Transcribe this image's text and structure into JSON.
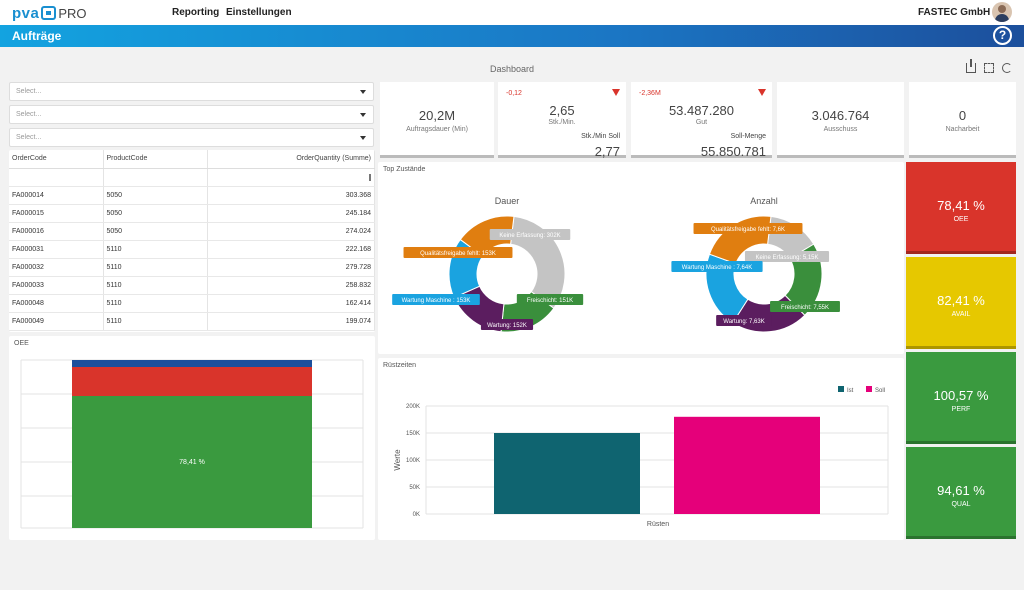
{
  "header": {
    "logo_text": "pva",
    "logo_suffix": "PRO",
    "nav": [
      "Reporting",
      "Einstellungen"
    ],
    "company": "FASTEC GmbH"
  },
  "titlebar": {
    "title": "Aufträge",
    "help": "?"
  },
  "dashboard": {
    "title": "Dashboard"
  },
  "filters": [
    "Select...",
    "Select...",
    "Select..."
  ],
  "table": {
    "columns": [
      "OrderCode",
      "ProductCode",
      "OrderQuantity (Summe)"
    ],
    "rows": [
      [
        "FA000014",
        "5050",
        "303.368"
      ],
      [
        "FA000015",
        "5050",
        "245.184"
      ],
      [
        "FA000016",
        "5050",
        "274.024"
      ],
      [
        "FA000031",
        "5110",
        "222.168"
      ],
      [
        "FA000032",
        "5110",
        "279.728"
      ],
      [
        "FA000033",
        "5110",
        "258.832"
      ],
      [
        "FA000048",
        "5110",
        "162.414"
      ],
      [
        "FA000049",
        "5110",
        "199.074"
      ]
    ]
  },
  "kpis": {
    "auftragsdauer": {
      "value": "20,2M",
      "label": "Auftragsdauer (Min)"
    },
    "stk": {
      "delta": "-0,12",
      "value": "2,65",
      "label": "Stk./Min.",
      "sub_label": "Stk./Min Soll",
      "sub_value": "2,77"
    },
    "gut": {
      "delta": "-2,36M",
      "value": "53.487.280",
      "label": "Gut",
      "sub_label": "Soll-Menge",
      "sub_value": "55.850.781"
    },
    "ausschuss": {
      "value": "3.046.764",
      "label": "Ausschuss"
    },
    "nacharbeit": {
      "value": "0",
      "label": "Nacharbeit"
    }
  },
  "tiles": [
    {
      "value": "78,41 %",
      "label": "OEE",
      "color": "#d9342b"
    },
    {
      "value": "82,41 %",
      "label": "AVAIL",
      "color": "#e6c800"
    },
    {
      "value": "100,57 %",
      "label": "PERF",
      "color": "#3a9a3f"
    },
    {
      "value": "94,61 %",
      "label": "QUAL",
      "color": "#3a9a3f"
    }
  ],
  "oee_panel": {
    "title": "OEE",
    "bar_label": "78,41 %"
  },
  "top_zustaende": {
    "title": "Top Zustände",
    "donuts": [
      {
        "title": "Dauer",
        "slices": [
          {
            "label": "Keine Erfassung: 302K",
            "value": 302,
            "color": "#c4c4c4"
          },
          {
            "label": "Freischicht: 151K",
            "value": 151,
            "color": "#3a8f3c"
          },
          {
            "label": "Wartung: 152K",
            "value": 152,
            "color": "#5b1d5f"
          },
          {
            "label": "Wartung Maschine : 153K",
            "value": 153,
            "color": "#1aa3e0"
          },
          {
            "label": "Qualitätsfreigabe fehlt: 153K",
            "value": 153,
            "color": "#e07e10"
          }
        ]
      },
      {
        "title": "Anzahl",
        "slices": [
          {
            "label": "Keine Erfassung: 5,15K",
            "value": 5.15,
            "color": "#c4c4c4"
          },
          {
            "label": "Freischicht: 7,55K",
            "value": 7.55,
            "color": "#3a8f3c"
          },
          {
            "label": "Wartung: 7,63K",
            "value": 7.63,
            "color": "#5b1d5f"
          },
          {
            "label": "Wartung Maschine : 7,64K",
            "value": 7.64,
            "color": "#1aa3e0"
          },
          {
            "label": "Qualitätsfreigabe fehlt: 7,6K",
            "value": 7.6,
            "color": "#e07e10"
          }
        ]
      }
    ]
  },
  "ruestzeiten": {
    "title": "Rüstzeiten"
  },
  "chart_data": {
    "type": "bar",
    "categories": [
      "Rüsten"
    ],
    "series": [
      {
        "name": "Ist",
        "values": [
          150000
        ],
        "color": "#0f6470"
      },
      {
        "name": "Soll",
        "values": [
          180000
        ],
        "color": "#e5007a"
      }
    ],
    "xlabel": "Rüsten",
    "ylabel": "Werte",
    "ylim": [
      0,
      200000
    ],
    "yticks": [
      "0K",
      "50K",
      "100K",
      "150K",
      "200K"
    ],
    "legend": "top-right",
    "grid": true
  }
}
